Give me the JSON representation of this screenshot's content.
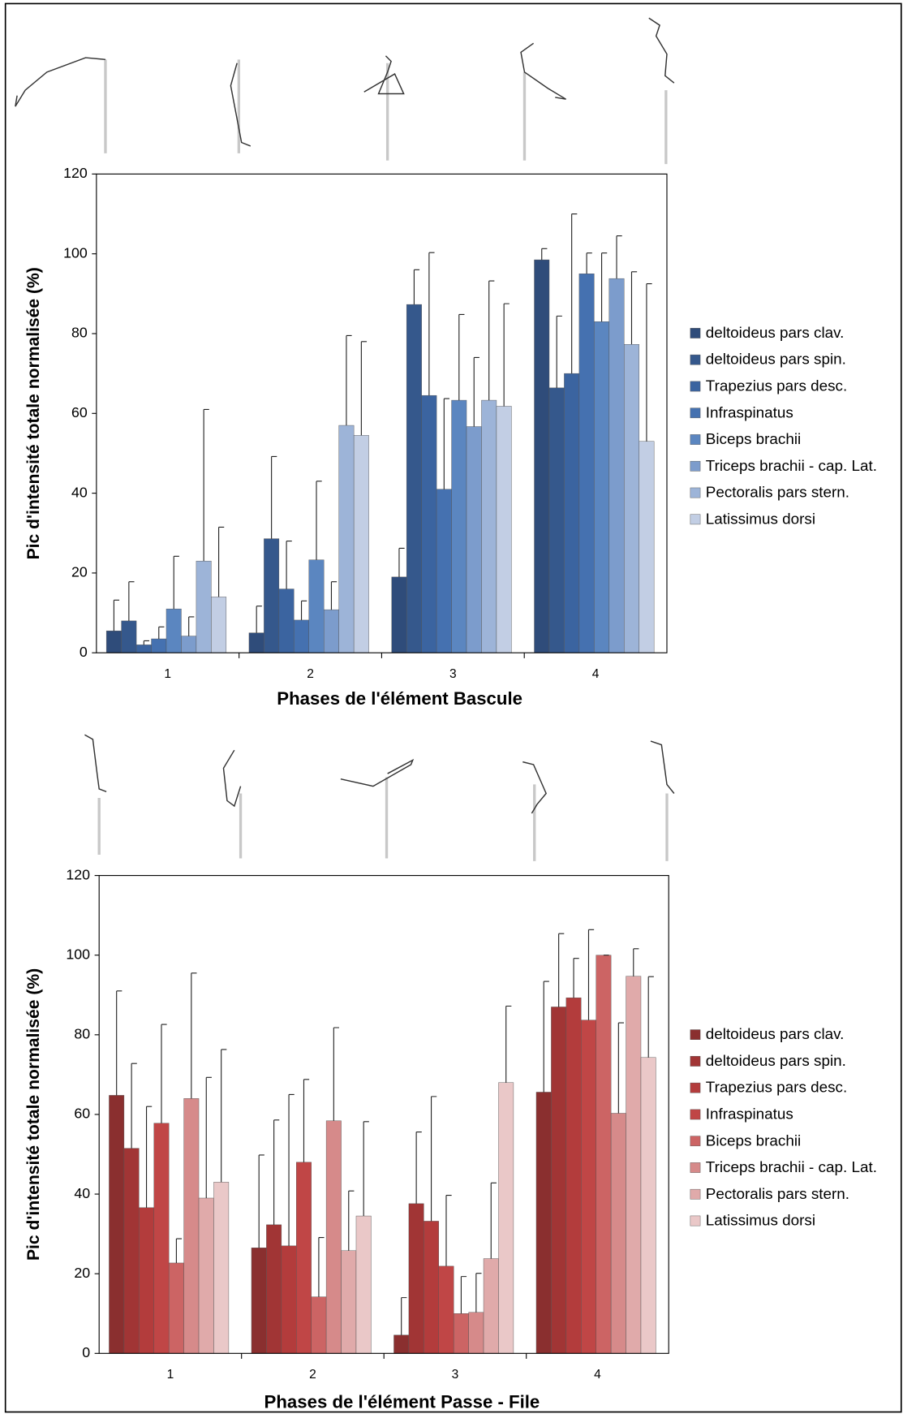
{
  "chart_data": [
    {
      "type": "bar",
      "x_label": "Phases de l'élément Bascule",
      "y_label": "Pic d'intensité totale normalisée (%)",
      "categories": [
        "1",
        "2",
        "3",
        "4"
      ],
      "ylim": [
        0,
        120
      ],
      "yticks": [
        0,
        20,
        40,
        60,
        80,
        100,
        120
      ],
      "series": [
        {
          "name": "deltoideus pars clav.",
          "color": "#2f4c7a",
          "values": [
            5.5,
            5,
            19,
            98.5
          ],
          "errors": [
            7.7,
            6.7,
            7.2,
            2.8
          ]
        },
        {
          "name": "deltoideus pars spin.",
          "color": "#35588c",
          "values": [
            8,
            28.6,
            87.3,
            66.4
          ],
          "errors": [
            9.8,
            20.6,
            8.7,
            18
          ]
        },
        {
          "name": "Trapezius pars desc.",
          "color": "#3b64a0",
          "values": [
            2,
            16,
            64.5,
            70
          ],
          "errors": [
            1,
            12,
            35.8,
            40
          ]
        },
        {
          "name": "Infraspinatus",
          "color": "#4571b0",
          "values": [
            3.5,
            8.2,
            41,
            95
          ],
          "errors": [
            3,
            4.8,
            22.7,
            5.2
          ]
        },
        {
          "name": "Biceps brachii",
          "color": "#5b86c0",
          "values": [
            11,
            23.3,
            63.3,
            83
          ],
          "errors": [
            13.2,
            19.7,
            21.5,
            17.2
          ]
        },
        {
          "name": "Triceps brachii - cap. Lat.",
          "color": "#7c9ccc",
          "values": [
            4.2,
            10.8,
            56.7,
            93.8
          ],
          "errors": [
            4.8,
            7,
            17.3,
            10.7
          ]
        },
        {
          "name": "Pectoralis pars stern.",
          "color": "#9db4d8",
          "values": [
            23,
            57,
            63.3,
            77.3
          ],
          "errors": [
            38,
            22.5,
            29.9,
            18.2
          ]
        },
        {
          "name": "Latissimus dorsi",
          "color": "#c2cee4",
          "values": [
            14,
            54.5,
            61.8,
            53
          ],
          "errors": [
            17.5,
            23.5,
            25.7,
            39.5
          ]
        }
      ]
    },
    {
      "type": "bar",
      "x_label": "Phases de l'élément Passe - File",
      "y_label": "Pic d'intensité totale normalisée (%)",
      "categories": [
        "1",
        "2",
        "3",
        "4"
      ],
      "ylim": [
        0,
        120
      ],
      "yticks": [
        0,
        20,
        40,
        60,
        80,
        100,
        120
      ],
      "series": [
        {
          "name": "deltoideus pars clav.",
          "color": "#8a2f2f",
          "values": [
            64.8,
            26.5,
            4.6,
            65.6
          ],
          "errors": [
            26.2,
            23.3,
            9.4,
            27.8
          ]
        },
        {
          "name": "deltoideus pars spin.",
          "color": "#a13535",
          "values": [
            51.5,
            32.3,
            37.6,
            87
          ],
          "errors": [
            21.3,
            26.3,
            18,
            18.4
          ]
        },
        {
          "name": "Trapezius pars desc.",
          "color": "#b33c3c",
          "values": [
            36.6,
            27,
            33.2,
            89.3
          ],
          "errors": [
            25.4,
            38,
            31.3,
            9.9
          ]
        },
        {
          "name": "Infraspinatus",
          "color": "#c04646",
          "values": [
            57.8,
            48,
            21.9,
            83.7
          ],
          "errors": [
            24.8,
            20.8,
            17.8,
            22.7
          ]
        },
        {
          "name": "Biceps brachii",
          "color": "#cc6464",
          "values": [
            22.7,
            14.2,
            10,
            100
          ],
          "errors": [
            6.1,
            14.9,
            9.3,
            0
          ]
        },
        {
          "name": "Triceps brachii - cap. Lat.",
          "color": "#d68a8a",
          "values": [
            64,
            58.4,
            10.3,
            60.3
          ],
          "errors": [
            31.5,
            23.4,
            9.8,
            22.7
          ]
        },
        {
          "name": "Pectoralis pars stern.",
          "color": "#e0aaaa",
          "values": [
            39,
            25.8,
            23.8,
            94.7
          ],
          "errors": [
            30.3,
            15,
            19,
            6.9
          ]
        },
        {
          "name": "Latissimus dorsi",
          "color": "#eac8c8",
          "values": [
            43,
            34.5,
            68,
            74.3
          ],
          "errors": [
            33.3,
            23.7,
            19.2,
            20.3
          ]
        }
      ]
    }
  ]
}
